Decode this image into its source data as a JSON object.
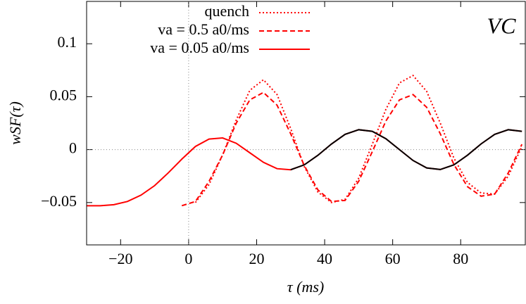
{
  "chart_data": {
    "type": "line",
    "xlabel": "τ (ms)",
    "ylabel": "wSF(τ)",
    "annotation": "VC",
    "x": [
      -30,
      -26,
      -22,
      -18,
      -14,
      -10,
      -6,
      -2,
      2,
      6,
      10,
      14,
      18,
      22,
      26,
      30,
      34,
      38,
      42,
      46,
      50,
      54,
      58,
      62,
      66,
      70,
      74,
      78,
      82,
      86,
      90,
      94,
      98
    ],
    "series": [
      {
        "name": "quench",
        "color": "#ff0000",
        "dash": "dotted",
        "values": [
          null,
          null,
          null,
          null,
          null,
          null,
          null,
          null,
          -0.05,
          -0.033,
          -0.005,
          0.028,
          0.056,
          0.066,
          0.052,
          0.02,
          -0.016,
          -0.04,
          -0.05,
          -0.047,
          -0.027,
          0.005,
          0.038,
          0.063,
          0.07,
          0.055,
          0.025,
          -0.008,
          -0.031,
          -0.041,
          -0.042,
          -0.025,
          0.003
        ]
      },
      {
        "name": "va = 0.5 a0/ms",
        "color": "#ff0000",
        "dash": "dashed",
        "values": [
          null,
          null,
          null,
          null,
          null,
          null,
          null,
          -0.053,
          -0.049,
          -0.03,
          -0.005,
          0.025,
          0.047,
          0.054,
          0.042,
          0.015,
          -0.015,
          -0.038,
          -0.049,
          -0.048,
          -0.03,
          -0.002,
          0.027,
          0.047,
          0.052,
          0.04,
          0.015,
          -0.014,
          -0.035,
          -0.044,
          -0.042,
          -0.022,
          0.005
        ]
      },
      {
        "name": "va = 0.05 a0/ms",
        "color": "#ff0000",
        "dash": "solid",
        "values": [
          -0.053,
          -0.053,
          -0.052,
          -0.049,
          -0.043,
          -0.034,
          -0.022,
          -0.009,
          0.003,
          0.01,
          0.011,
          0.006,
          -0.003,
          -0.012,
          -0.018,
          -0.019,
          -0.0144,
          -0.0054,
          0.0053,
          0.0144,
          0.0188,
          0.0173,
          0.0103,
          0,
          -0.0103,
          -0.0173,
          -0.0188,
          -0.0144,
          -0.0053,
          0.0054,
          0.0144,
          0.0188,
          0.0173
        ]
      },
      {
        "color": "#000000",
        "dash": "solid",
        "values": [
          null,
          null,
          null,
          null,
          null,
          null,
          null,
          null,
          null,
          null,
          null,
          null,
          null,
          null,
          null,
          -0.019,
          -0.0144,
          -0.0054,
          0.0053,
          0.0144,
          0.0188,
          0.0173,
          0.0103,
          0,
          -0.0103,
          -0.0173,
          -0.0188,
          -0.0144,
          -0.0053,
          0.0054,
          0.0144,
          0.0188,
          0.0173
        ]
      }
    ],
    "xlim": [
      -30,
      99
    ],
    "ylim": [
      -0.09,
      0.14
    ],
    "xticks": [
      {
        "value": -20,
        "label": "−20"
      },
      0,
      20,
      40,
      60,
      80
    ],
    "yticks": [
      {
        "value": -0.05,
        "label": "−0.05"
      },
      0,
      0.05,
      0.1
    ],
    "zero_lines": true,
    "legend": "top"
  }
}
